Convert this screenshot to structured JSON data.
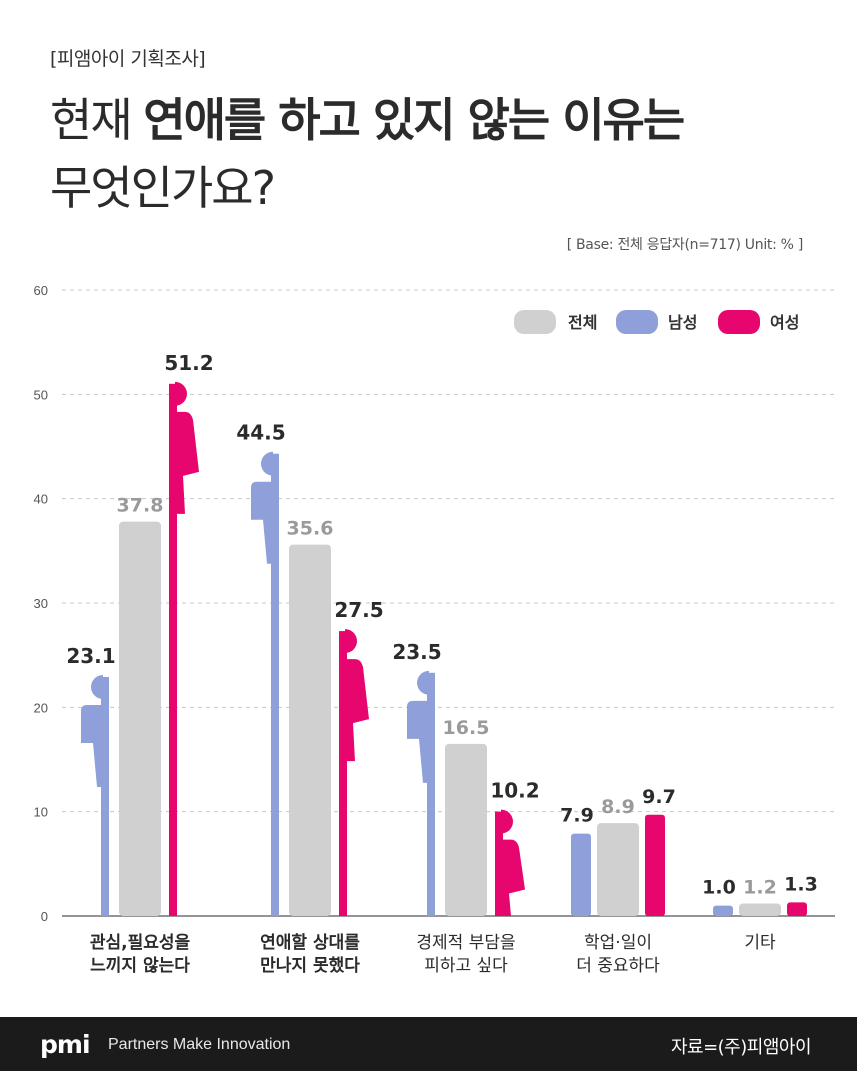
{
  "header": {
    "tag": "[피앰아이 기획조사]",
    "title_line1_prefix": "현재 ",
    "title_line1_bold": "연애를 하고 있지 않는 이유는",
    "title_line2": "무엇인가요?",
    "base_note": "[ Base: 전체 응답자(n=717) Unit: % ]"
  },
  "footer": {
    "logo": "pmi",
    "slogan": "Partners Make Innovation",
    "source": "자료=(주)피앰아이"
  },
  "colors": {
    "total": "#d0d0d0",
    "male": "#8e9fd9",
    "female": "#e6066e",
    "grid": "#c8c8c8",
    "axis": "#555555"
  },
  "chart_data": {
    "type": "bar",
    "title": "",
    "xlabel": "",
    "ylabel": "",
    "ylim": [
      0,
      60
    ],
    "yticks": [
      0,
      10,
      20,
      30,
      40,
      50,
      60
    ],
    "grid": true,
    "legend_position": "top-right",
    "categories": [
      [
        "관심,필요성을",
        "느끼지 않는다"
      ],
      [
        "연애할 상대를",
        "만나지 못했다"
      ],
      [
        "경제적 부담을",
        "피하고 싶다"
      ],
      [
        "학업·일이",
        "더 중요하다"
      ],
      [
        "기타"
      ]
    ],
    "category_bold": [
      true,
      true,
      false,
      false,
      false
    ],
    "series": [
      {
        "name": "남성",
        "key": "male",
        "values": [
          23.1,
          44.5,
          23.5,
          7.9,
          1.0
        ],
        "labels": [
          "23.1",
          "44.5",
          "23.5",
          "7.9",
          "1.0"
        ]
      },
      {
        "name": "전체",
        "key": "total",
        "values": [
          37.8,
          35.6,
          16.5,
          8.9,
          1.2
        ],
        "labels": [
          "37.8",
          "35.6",
          "16.5",
          "8.9",
          "1.2"
        ]
      },
      {
        "name": "여성",
        "key": "female",
        "values": [
          51.2,
          27.5,
          10.2,
          9.7,
          1.3
        ],
        "labels": [
          "51.2",
          "27.5",
          "10.2",
          "9.7",
          "1.3"
        ]
      }
    ],
    "legend_order": [
      "전체",
      "남성",
      "여성"
    ]
  }
}
